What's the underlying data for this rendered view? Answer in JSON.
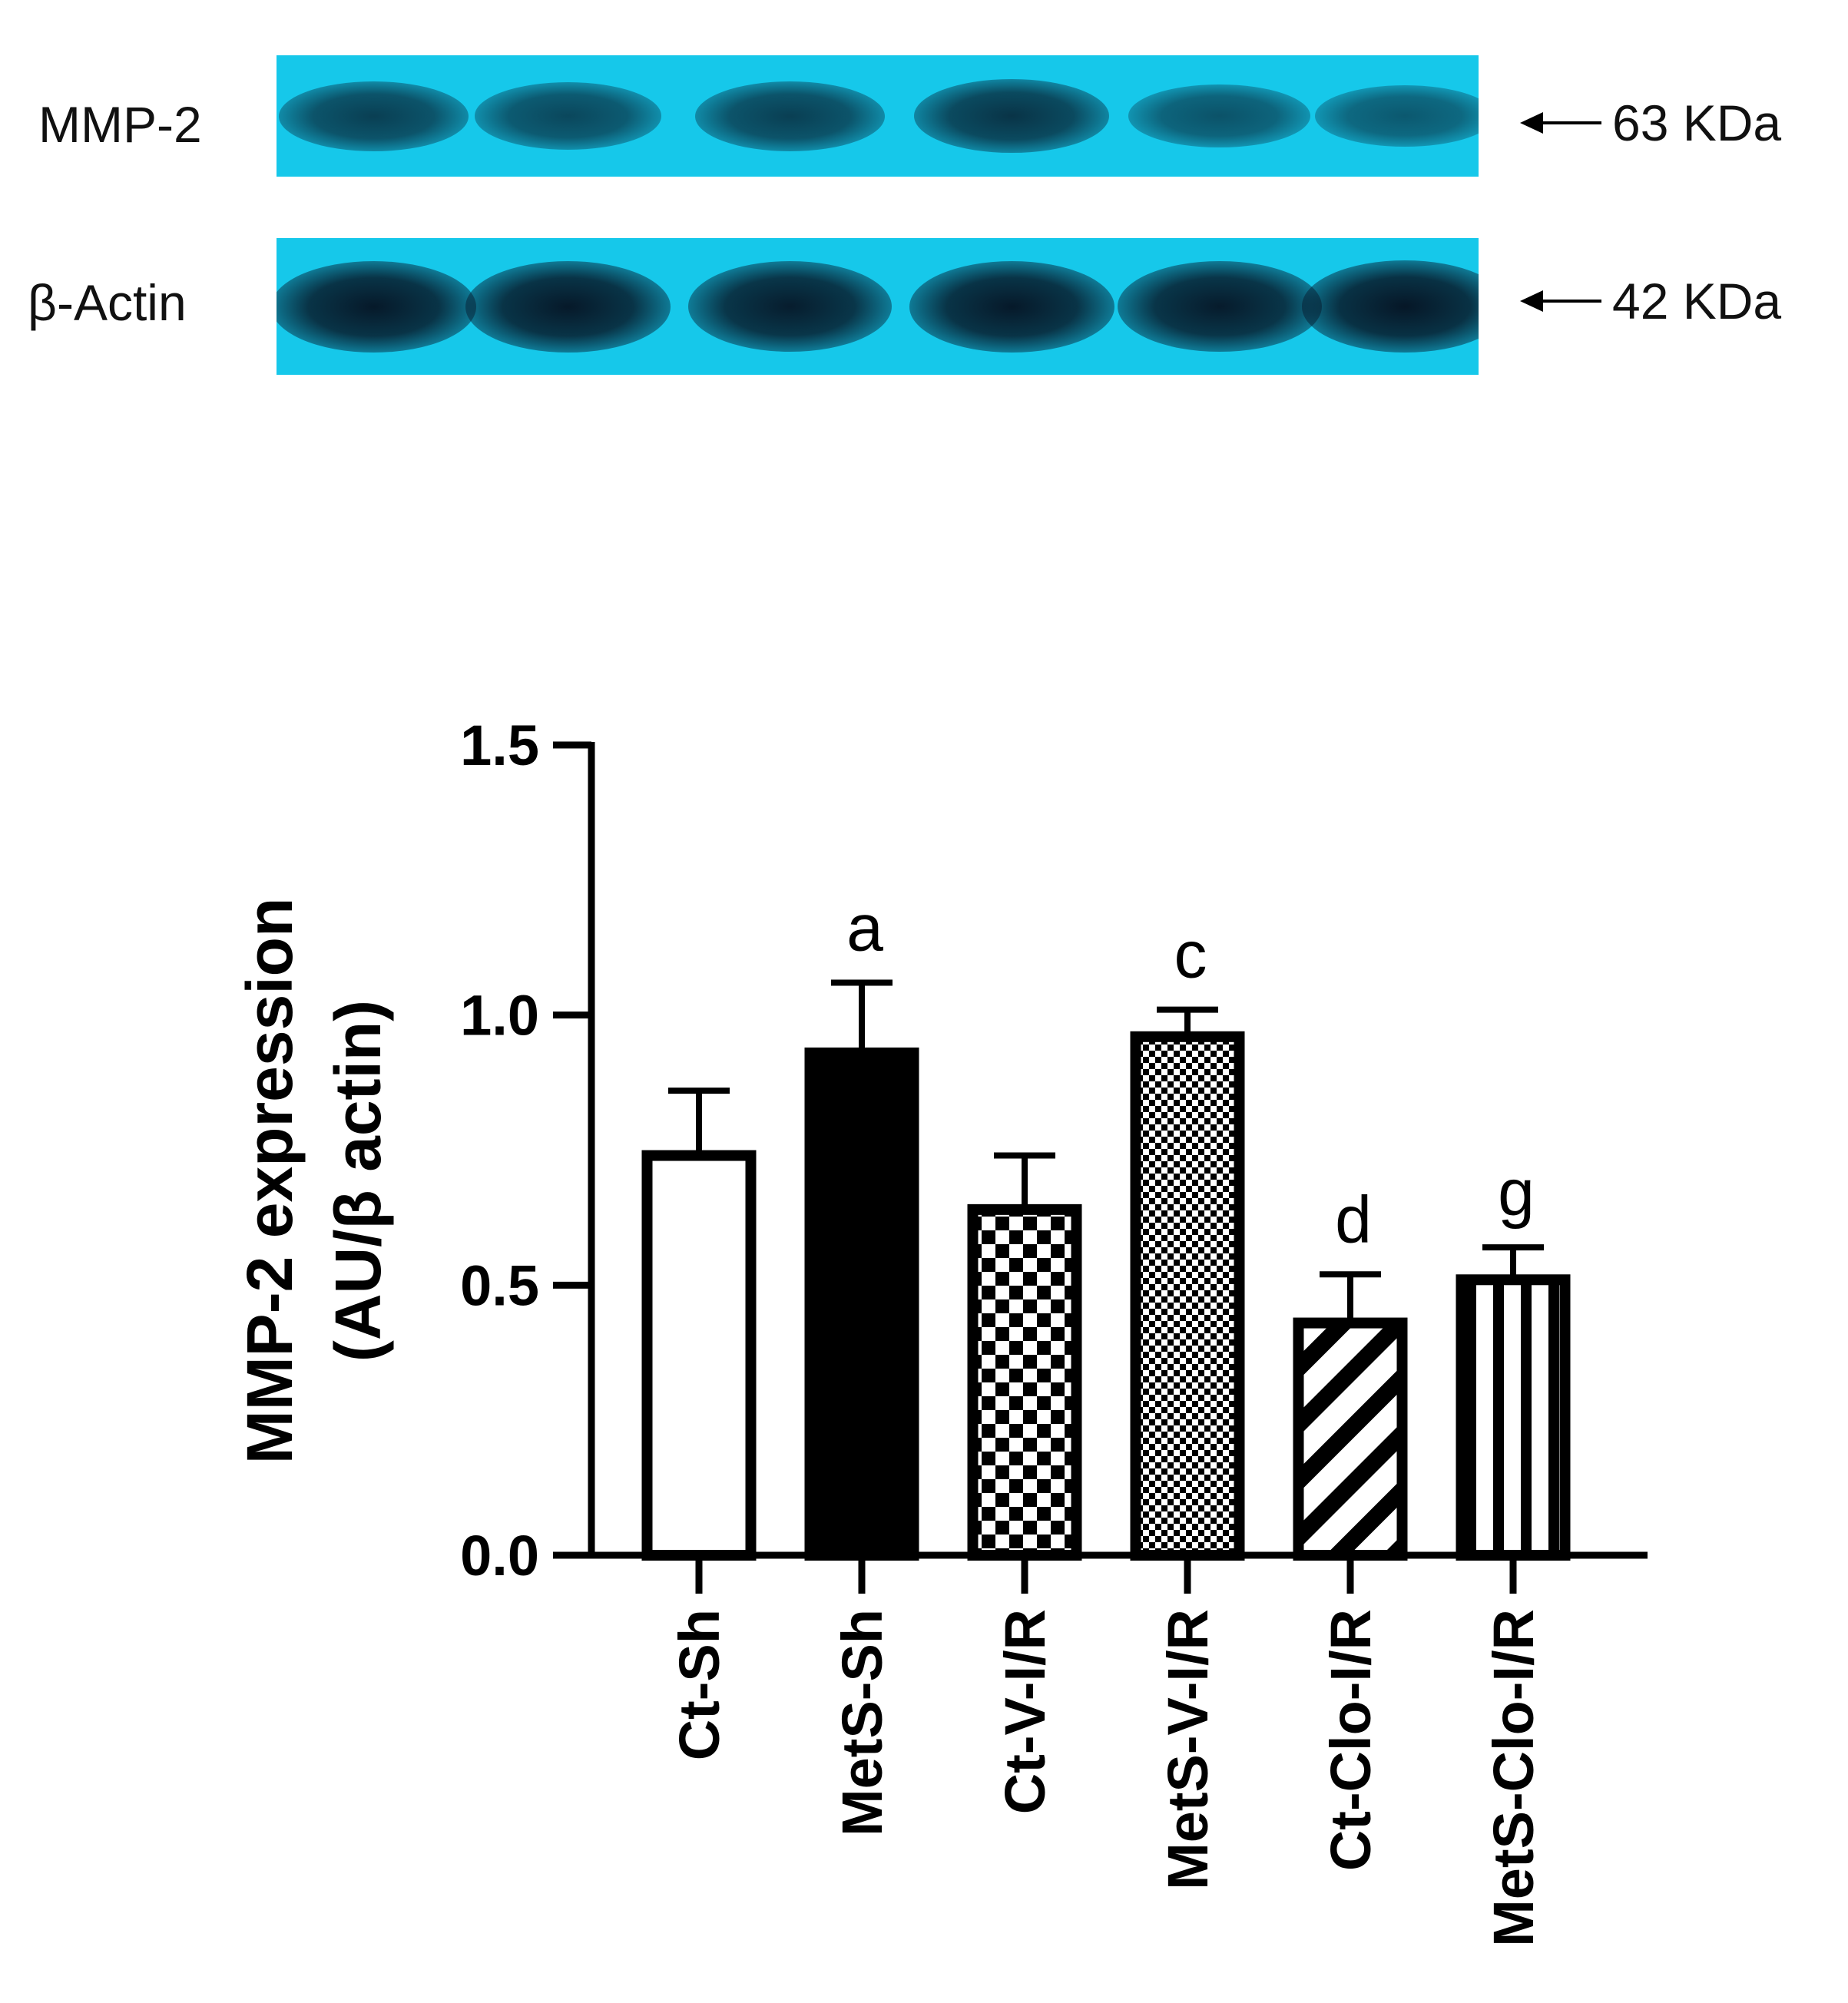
{
  "blot": {
    "rows": [
      {
        "label": "MMP-2",
        "marker": "63 KDa",
        "band_intensity": [
          0.62,
          0.55,
          0.62,
          0.72,
          0.45,
          0.4
        ]
      },
      {
        "label": "β-Actin",
        "marker": "42 KDa",
        "band_intensity": [
          0.95,
          0.95,
          0.92,
          0.95,
          0.93,
          0.97
        ]
      }
    ]
  },
  "chart_data": {
    "type": "bar",
    "categories": [
      "Ct-Sh",
      "MetS-Sh",
      "Ct-V-I/R",
      "MetS-V-I/R",
      "Ct-Clo-I/R",
      "MetS-Clo-I/R"
    ],
    "values": [
      0.74,
      0.93,
      0.64,
      0.96,
      0.43,
      0.51
    ],
    "errors": [
      0.12,
      0.13,
      0.1,
      0.05,
      0.09,
      0.06
    ],
    "patterns": [
      "empty",
      "solid",
      "checker-large",
      "checker-small",
      "diagonal-stripes",
      "vertical-stripes"
    ],
    "significance": [
      "",
      "a",
      "",
      "c",
      "d",
      "g"
    ],
    "ylabel_line1": "MMP-2 expression",
    "ylabel_line2": "(AU/β actin)",
    "yticks": [
      "0.0",
      "0.5",
      "1.0",
      "1.5"
    ],
    "ylim": [
      0,
      1.5
    ],
    "xlabel": "",
    "grid": false,
    "legend": "none"
  }
}
